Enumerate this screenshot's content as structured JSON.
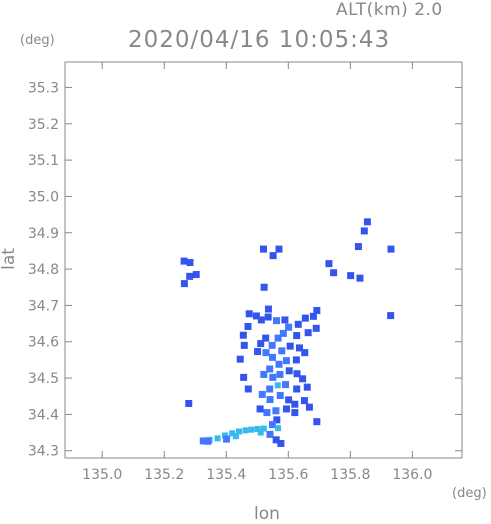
{
  "chart_data": {
    "type": "scatter",
    "title": "2020/04/16 10:05:43",
    "subtitle": "ALT(km) 2.0",
    "xlabel": "lon",
    "ylabel": "lat",
    "x_unit": "(deg)",
    "y_unit": "(deg)",
    "xlim": [
      134.88,
      136.16
    ],
    "ylim": [
      34.28,
      35.37
    ],
    "xticks": [
      "135.0",
      "135.2",
      "135.4",
      "135.6",
      "135.8",
      "136.0"
    ],
    "yticks": [
      "34.3",
      "34.4",
      "34.5",
      "34.6",
      "34.7",
      "34.8",
      "34.9",
      "35.0",
      "35.1",
      "35.2",
      "35.3"
    ],
    "grid": false,
    "colors": {
      "weak": "#3355ee",
      "moderate": "#4477ff",
      "strong": "#33bbee",
      "axis": "#888888"
    },
    "points": [
      [
        135.264,
        34.822,
        "weak"
      ],
      [
        135.283,
        34.818,
        "weak"
      ],
      [
        135.303,
        34.785,
        "weak"
      ],
      [
        135.282,
        34.78,
        "weak"
      ],
      [
        135.265,
        34.76,
        "weak"
      ],
      [
        135.52,
        34.855,
        "weak"
      ],
      [
        135.551,
        34.837,
        "weak"
      ],
      [
        135.57,
        34.855,
        "weak"
      ],
      [
        135.855,
        34.93,
        "weak"
      ],
      [
        135.845,
        34.905,
        "weak"
      ],
      [
        135.826,
        34.862,
        "weak"
      ],
      [
        135.931,
        34.855,
        "weak"
      ],
      [
        135.731,
        34.815,
        "weak"
      ],
      [
        135.746,
        34.79,
        "weak"
      ],
      [
        135.801,
        34.782,
        "weak"
      ],
      [
        135.831,
        34.775,
        "weak"
      ],
      [
        135.93,
        34.672,
        "weak"
      ],
      [
        135.522,
        34.75,
        "weak"
      ],
      [
        135.536,
        34.69,
        "weak"
      ],
      [
        135.474,
        34.677,
        "weak"
      ],
      [
        135.497,
        34.671,
        "weak"
      ],
      [
        135.47,
        34.642,
        "weak"
      ],
      [
        135.455,
        34.618,
        "weak"
      ],
      [
        135.458,
        34.59,
        "weak"
      ],
      [
        135.445,
        34.552,
        "weak"
      ],
      [
        135.513,
        34.66,
        "weak"
      ],
      [
        135.535,
        34.668,
        "weak"
      ],
      [
        135.562,
        34.658,
        "moderate"
      ],
      [
        135.589,
        34.66,
        "weak"
      ],
      [
        135.601,
        34.64,
        "moderate"
      ],
      [
        135.632,
        34.648,
        "weak"
      ],
      [
        135.655,
        34.665,
        "weak"
      ],
      [
        135.681,
        34.67,
        "weak"
      ],
      [
        135.692,
        34.686,
        "weak"
      ],
      [
        135.69,
        34.637,
        "weak"
      ],
      [
        135.664,
        34.625,
        "weak"
      ],
      [
        135.627,
        34.617,
        "weak"
      ],
      [
        135.584,
        34.623,
        "moderate"
      ],
      [
        135.567,
        34.61,
        "moderate"
      ],
      [
        135.548,
        34.59,
        "moderate"
      ],
      [
        135.527,
        34.61,
        "weak"
      ],
      [
        135.511,
        34.595,
        "weak"
      ],
      [
        135.501,
        34.573,
        "weak"
      ],
      [
        135.528,
        34.57,
        "moderate"
      ],
      [
        135.549,
        34.557,
        "moderate"
      ],
      [
        135.579,
        34.575,
        "moderate"
      ],
      [
        135.606,
        34.588,
        "weak"
      ],
      [
        135.636,
        34.583,
        "weak"
      ],
      [
        135.653,
        34.57,
        "weak"
      ],
      [
        135.626,
        34.55,
        "weak"
      ],
      [
        135.594,
        34.548,
        "moderate"
      ],
      [
        135.57,
        34.538,
        "moderate"
      ],
      [
        135.54,
        34.525,
        "moderate"
      ],
      [
        135.521,
        34.51,
        "moderate"
      ],
      [
        135.55,
        34.502,
        "moderate"
      ],
      [
        135.573,
        34.51,
        "moderate"
      ],
      [
        135.603,
        34.52,
        "weak"
      ],
      [
        135.628,
        34.512,
        "weak"
      ],
      [
        135.646,
        34.498,
        "weak"
      ],
      [
        135.661,
        34.475,
        "weak"
      ],
      [
        135.627,
        34.47,
        "weak"
      ],
      [
        135.591,
        34.482,
        "moderate"
      ],
      [
        135.566,
        34.48,
        "strong"
      ],
      [
        135.54,
        34.47,
        "moderate"
      ],
      [
        135.516,
        34.455,
        "moderate"
      ],
      [
        135.541,
        34.441,
        "moderate"
      ],
      [
        135.574,
        34.452,
        "moderate"
      ],
      [
        135.601,
        34.44,
        "weak"
      ],
      [
        135.621,
        34.428,
        "weak"
      ],
      [
        135.652,
        34.438,
        "weak"
      ],
      [
        135.668,
        34.42,
        "weak"
      ],
      [
        135.621,
        34.405,
        "weak"
      ],
      [
        135.594,
        34.415,
        "weak"
      ],
      [
        135.56,
        34.41,
        "moderate"
      ],
      [
        135.531,
        34.405,
        "moderate"
      ],
      [
        135.509,
        34.415,
        "weak"
      ],
      [
        135.471,
        34.47,
        "weak"
      ],
      [
        135.456,
        34.502,
        "weak"
      ],
      [
        135.563,
        34.385,
        "weak"
      ],
      [
        135.549,
        34.372,
        "moderate"
      ],
      [
        135.567,
        34.362,
        "strong"
      ],
      [
        135.541,
        34.345,
        "moderate"
      ],
      [
        135.561,
        34.33,
        "weak"
      ],
      [
        135.576,
        34.32,
        "weak"
      ],
      [
        135.279,
        34.43,
        "weak"
      ],
      [
        135.692,
        34.38,
        "weak"
      ],
      [
        135.346,
        34.33,
        "strong"
      ],
      [
        135.372,
        34.334,
        "strong"
      ],
      [
        135.396,
        34.342,
        "strong"
      ],
      [
        135.419,
        34.348,
        "strong"
      ],
      [
        135.441,
        34.353,
        "strong"
      ],
      [
        135.462,
        34.356,
        "strong"
      ],
      [
        135.481,
        34.358,
        "strong"
      ],
      [
        135.501,
        34.36,
        "strong"
      ],
      [
        135.521,
        34.361,
        "strong"
      ],
      [
        135.341,
        34.326,
        "moderate"
      ],
      [
        135.326,
        34.327,
        "moderate"
      ],
      [
        135.401,
        34.332,
        "moderate"
      ],
      [
        135.431,
        34.34,
        "strong"
      ],
      [
        135.511,
        34.35,
        "strong"
      ]
    ]
  }
}
